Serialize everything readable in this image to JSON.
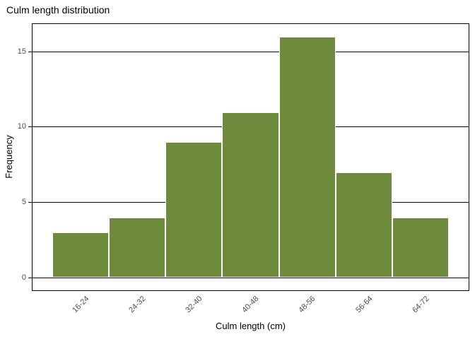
{
  "figure": {
    "title": "Culm length distribution",
    "x_axis_title": "Culm length (cm)",
    "y_axis_title": "Frequency"
  },
  "chart_data": {
    "type": "bar",
    "subtype": "histogram",
    "title": "Culm length distribution",
    "xlabel": "Culm length (cm)",
    "ylabel": "Frequency",
    "categories": [
      "16-24",
      "24-32",
      "32-40",
      "40-48",
      "48-56",
      "56-64",
      "64-72"
    ],
    "values": [
      3,
      4,
      9,
      11,
      16,
      7,
      4
    ],
    "bin_edges": [
      16,
      24,
      32,
      40,
      48,
      56,
      64,
      72
    ],
    "yticks": [
      0,
      5,
      10,
      15
    ],
    "ylim": [
      -0.84,
      16.84
    ],
    "xlim": [
      13.2,
      74.8
    ],
    "grid": "horizontal",
    "legend": "none",
    "colors": {
      "bar_fill": "#6E8B3D",
      "bar_stroke": "#FFFFFF",
      "gridline": "#000000",
      "panel_border": "#000000",
      "tick": "#000000",
      "axis_text": "#4D4D4D",
      "title_text": "#000000"
    }
  }
}
